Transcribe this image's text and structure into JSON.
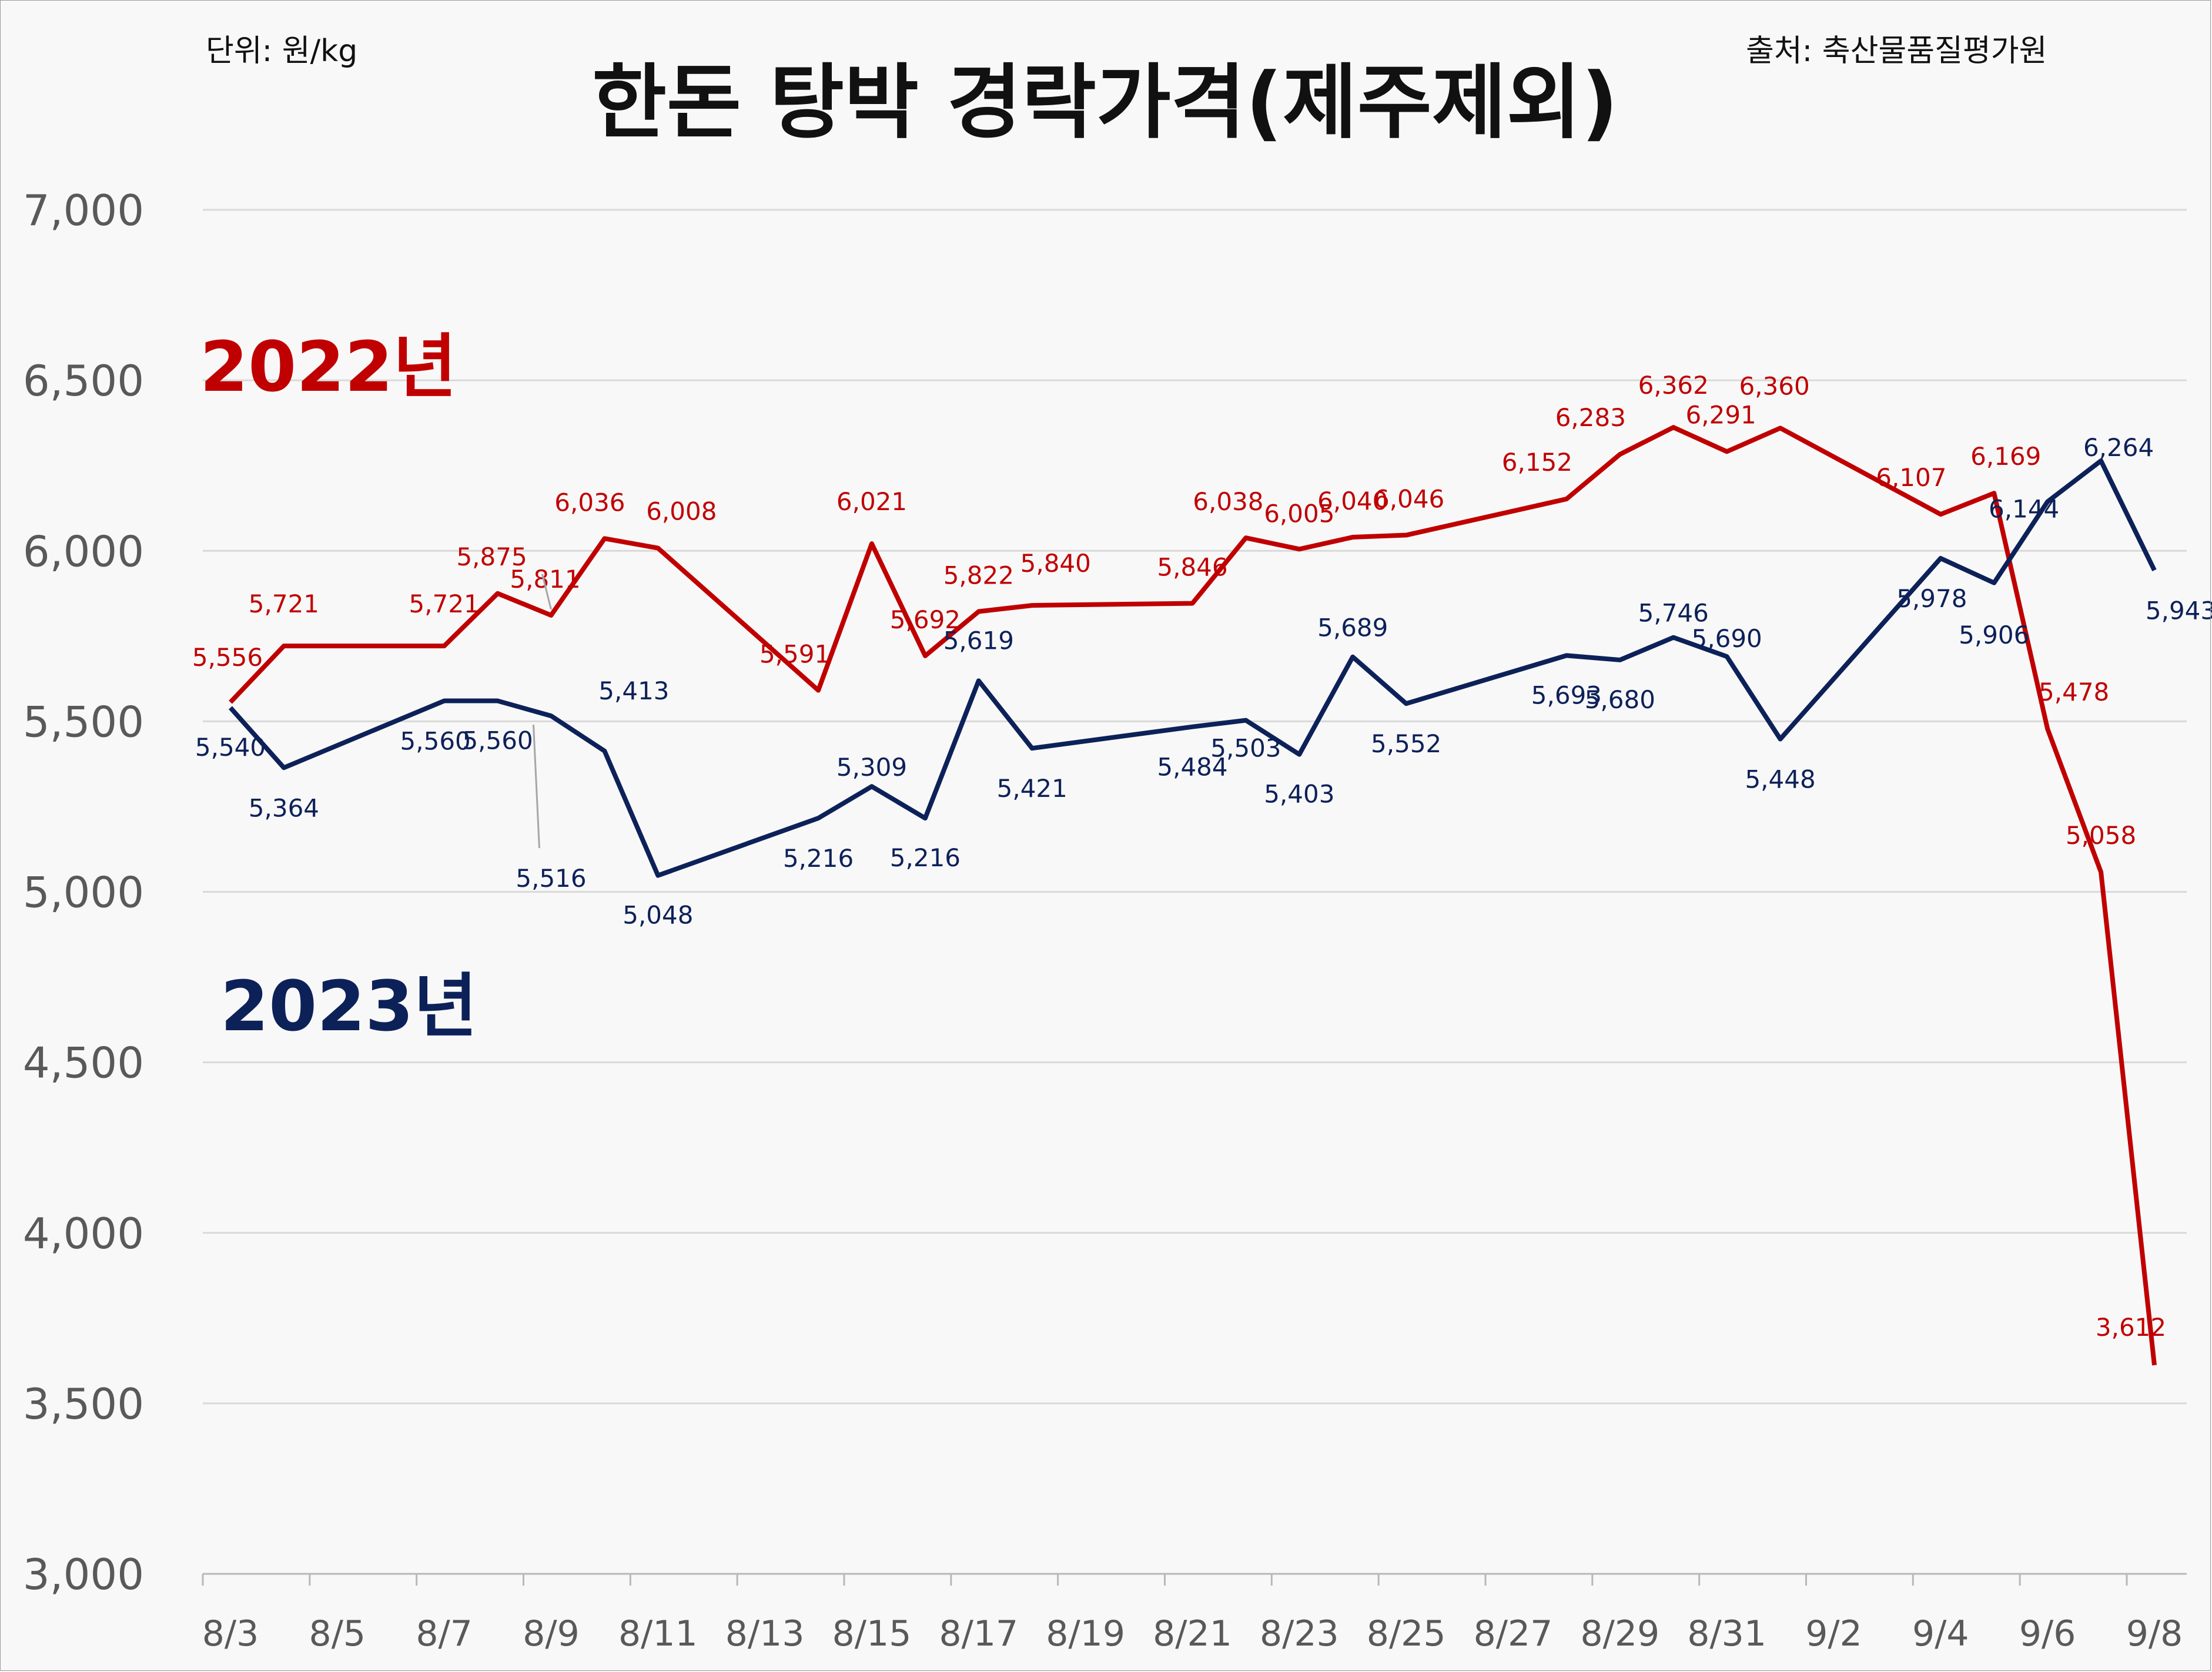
{
  "chart_data": {
    "type": "line",
    "title": "한돈 탕박 경락가격(제주제외)",
    "unit_note": "단위: 원/kg",
    "source_note": "출처: 축산물품질평가원",
    "ylim": [
      3000,
      7000
    ],
    "y_ticks": [
      3000,
      3500,
      4000,
      4500,
      5000,
      5500,
      6000,
      6500,
      7000
    ],
    "x_range": [
      "8/3",
      "9/8"
    ],
    "x_ticks": [
      "8/3",
      "8/5",
      "8/7",
      "8/9",
      "8/11",
      "8/13",
      "8/15",
      "8/17",
      "8/19",
      "8/21",
      "8/23",
      "8/25",
      "8/27",
      "8/29",
      "8/31",
      "9/2",
      "9/4",
      "9/6",
      "9/8"
    ],
    "grid": true,
    "series": [
      {
        "name": "2022년",
        "color": "#c00000",
        "x": [
          "8/3",
          "8/4",
          "8/7",
          "8/8",
          "8/9",
          "8/10",
          "8/11",
          "8/14",
          "8/15",
          "8/16",
          "8/17",
          "8/18",
          "8/21",
          "8/22",
          "8/23",
          "8/24",
          "8/25",
          "8/28",
          "8/29",
          "8/30",
          "8/31",
          "9/1",
          "9/4",
          "9/5",
          "9/6",
          "9/7",
          "9/8"
        ],
        "values": [
          5556,
          5721,
          5721,
          5875,
          5811,
          6036,
          6008,
          5591,
          6021,
          5692,
          5822,
          5840,
          5846,
          6038,
          6005,
          6040,
          6046,
          6152,
          6283,
          6362,
          6291,
          6360,
          6107,
          6169,
          5478,
          5058,
          3612
        ],
        "labels": [
          "5,556",
          "5,721",
          "5,721",
          "5,875",
          "5,811",
          "6,036",
          "6,008",
          "5,591",
          "6,021",
          "5,692",
          "5,822",
          "5,840",
          "5,846",
          "6,038",
          "6,005",
          "6,040",
          "6,046",
          "6,152",
          "6,283",
          "6,362",
          "6,291",
          "6,360",
          "6,107",
          "6,169",
          "5,478",
          "5,058",
          "3,612"
        ]
      },
      {
        "name": "2023년",
        "color": "#0d2159",
        "x": [
          "8/3",
          "8/4",
          "8/7",
          "8/8",
          "8/9",
          "8/10",
          "8/11",
          "8/14",
          "8/15",
          "8/16",
          "8/17",
          "8/18",
          "8/21",
          "8/22",
          "8/23",
          "8/24",
          "8/25",
          "8/28",
          "8/29",
          "8/30",
          "8/31",
          "9/1",
          "9/4",
          "9/5",
          "9/6",
          "9/7",
          "9/8"
        ],
        "values": [
          5540,
          5364,
          5560,
          5560,
          5516,
          5413,
          5048,
          5216,
          5309,
          5216,
          5619,
          5421,
          5484,
          5503,
          5403,
          5689,
          5552,
          5693,
          5680,
          5746,
          5690,
          5448,
          5978,
          5906,
          6144,
          6264,
          5943
        ],
        "labels": [
          "5,540",
          "5,364",
          "5,560",
          "5,560",
          "5,516",
          "5,413",
          "5,048",
          "5,216",
          "5,309",
          "5,216",
          "5,619",
          "5,421",
          "5,484",
          "5,503",
          "5,403",
          "5,689",
          "5,552",
          "5,693",
          "5,680",
          "5,746",
          "5,690",
          "5,448",
          "5,978",
          "5,906",
          "6,144",
          "6,264",
          "5,943"
        ]
      }
    ]
  }
}
